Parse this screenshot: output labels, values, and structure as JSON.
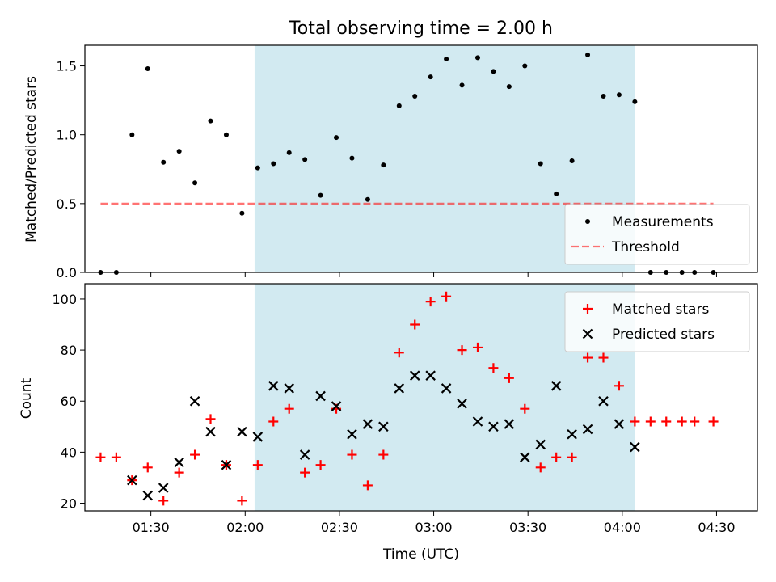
{
  "colors": {
    "background": "#ffffff",
    "band": "#add8e6",
    "measurement": "#000000",
    "threshold": "#ff0000",
    "matched": "#ff0000",
    "predicted": "#000000"
  },
  "chart_data": [
    {
      "type": "scatter",
      "title": "Total observing time = 2.00 h",
      "ylabel": "Matched/Predicted stars",
      "xlabel": "",
      "ylim": [
        0,
        1.65
      ],
      "yticks": [
        "0.0",
        "0.5",
        "1.0",
        "1.5"
      ],
      "xlim": [
        "01:09",
        "04:43"
      ],
      "shaded_band": {
        "start": "02:03",
        "end": "04:04",
        "color": "#add8e6"
      },
      "legend": {
        "placement": "lower right",
        "entries": [
          "Measurements",
          "Threshold"
        ]
      },
      "series": [
        {
          "name": "Measurements",
          "marker": "dot",
          "points": [
            [
              "01:14",
              0.0
            ],
            [
              "01:19",
              0.0
            ],
            [
              "01:24",
              1.0
            ],
            [
              "01:29",
              1.48
            ],
            [
              "01:34",
              0.8
            ],
            [
              "01:39",
              0.88
            ],
            [
              "01:44",
              0.65
            ],
            [
              "01:49",
              1.1
            ],
            [
              "01:54",
              1.0
            ],
            [
              "01:59",
              0.43
            ],
            [
              "02:04",
              0.76
            ],
            [
              "02:09",
              0.79
            ],
            [
              "02:14",
              0.87
            ],
            [
              "02:19",
              0.82
            ],
            [
              "02:24",
              0.56
            ],
            [
              "02:29",
              0.98
            ],
            [
              "02:34",
              0.83
            ],
            [
              "02:39",
              0.53
            ],
            [
              "02:44",
              0.78
            ],
            [
              "02:49",
              1.21
            ],
            [
              "02:54",
              1.28
            ],
            [
              "02:59",
              1.42
            ],
            [
              "03:04",
              1.55
            ],
            [
              "03:09",
              1.36
            ],
            [
              "03:14",
              1.56
            ],
            [
              "03:19",
              1.46
            ],
            [
              "03:24",
              1.35
            ],
            [
              "03:29",
              1.5
            ],
            [
              "03:34",
              0.79
            ],
            [
              "03:39",
              0.57
            ],
            [
              "03:44",
              0.81
            ],
            [
              "03:49",
              1.58
            ],
            [
              "03:54",
              1.28
            ],
            [
              "03:59",
              1.29
            ],
            [
              "04:04",
              1.24
            ],
            [
              "04:09",
              0.0
            ],
            [
              "04:14",
              0.0
            ],
            [
              "04:19",
              0.0
            ],
            [
              "04:23",
              0.0
            ],
            [
              "04:29",
              0.0
            ]
          ]
        },
        {
          "name": "Threshold",
          "marker": "dashed-line",
          "points": [
            [
              "01:14",
              0.5
            ],
            [
              "04:29",
              0.5
            ]
          ]
        }
      ]
    },
    {
      "type": "scatter",
      "title": "",
      "ylabel": "Count",
      "xlabel": "Time (UTC)",
      "ylim": [
        17,
        106
      ],
      "yticks": [
        "20",
        "40",
        "60",
        "80",
        "100"
      ],
      "xlim": [
        "01:09",
        "04:43"
      ],
      "xticks": [
        "01:30",
        "02:00",
        "02:30",
        "03:00",
        "03:30",
        "04:00",
        "04:30"
      ],
      "shaded_band": {
        "start": "02:03",
        "end": "04:04",
        "color": "#add8e6"
      },
      "legend": {
        "placement": "upper right",
        "entries": [
          "Matched stars",
          "Predicted stars"
        ]
      },
      "series": [
        {
          "name": "Matched stars",
          "marker": "plus",
          "points": [
            [
              "01:14",
              38
            ],
            [
              "01:19",
              38
            ],
            [
              "01:24",
              29
            ],
            [
              "01:29",
              34
            ],
            [
              "01:34",
              21
            ],
            [
              "01:39",
              32
            ],
            [
              "01:44",
              39
            ],
            [
              "01:49",
              53
            ],
            [
              "01:54",
              35
            ],
            [
              "01:59",
              21
            ],
            [
              "02:04",
              35
            ],
            [
              "02:09",
              52
            ],
            [
              "02:14",
              57
            ],
            [
              "02:19",
              32
            ],
            [
              "02:24",
              35
            ],
            [
              "02:29",
              57
            ],
            [
              "02:34",
              39
            ],
            [
              "02:39",
              27
            ],
            [
              "02:44",
              39
            ],
            [
              "02:49",
              79
            ],
            [
              "02:54",
              90
            ],
            [
              "02:59",
              99
            ],
            [
              "03:04",
              101
            ],
            [
              "03:09",
              80
            ],
            [
              "03:14",
              81
            ],
            [
              "03:19",
              73
            ],
            [
              "03:24",
              69
            ],
            [
              "03:29",
              57
            ],
            [
              "03:34",
              34
            ],
            [
              "03:39",
              38
            ],
            [
              "03:44",
              38
            ],
            [
              "03:49",
              77
            ],
            [
              "03:54",
              77
            ],
            [
              "03:59",
              66
            ],
            [
              "04:04",
              52
            ],
            [
              "04:09",
              52
            ],
            [
              "04:14",
              52
            ],
            [
              "04:19",
              52
            ],
            [
              "04:23",
              52
            ],
            [
              "04:29",
              52
            ]
          ]
        },
        {
          "name": "Predicted stars",
          "marker": "x",
          "points": [
            [
              "01:24",
              29
            ],
            [
              "01:29",
              23
            ],
            [
              "01:34",
              26
            ],
            [
              "01:39",
              36
            ],
            [
              "01:44",
              60
            ],
            [
              "01:49",
              48
            ],
            [
              "01:54",
              35
            ],
            [
              "01:59",
              48
            ],
            [
              "02:04",
              46
            ],
            [
              "02:09",
              66
            ],
            [
              "02:14",
              65
            ],
            [
              "02:19",
              39
            ],
            [
              "02:24",
              62
            ],
            [
              "02:29",
              58
            ],
            [
              "02:34",
              47
            ],
            [
              "02:39",
              51
            ],
            [
              "02:44",
              50
            ],
            [
              "02:49",
              65
            ],
            [
              "02:54",
              70
            ],
            [
              "02:59",
              70
            ],
            [
              "03:04",
              65
            ],
            [
              "03:09",
              59
            ],
            [
              "03:14",
              52
            ],
            [
              "03:19",
              50
            ],
            [
              "03:24",
              51
            ],
            [
              "03:29",
              38
            ],
            [
              "03:34",
              43
            ],
            [
              "03:39",
              66
            ],
            [
              "03:44",
              47
            ],
            [
              "03:49",
              49
            ],
            [
              "03:54",
              60
            ],
            [
              "03:59",
              51
            ],
            [
              "04:04",
              42
            ]
          ]
        }
      ]
    }
  ]
}
